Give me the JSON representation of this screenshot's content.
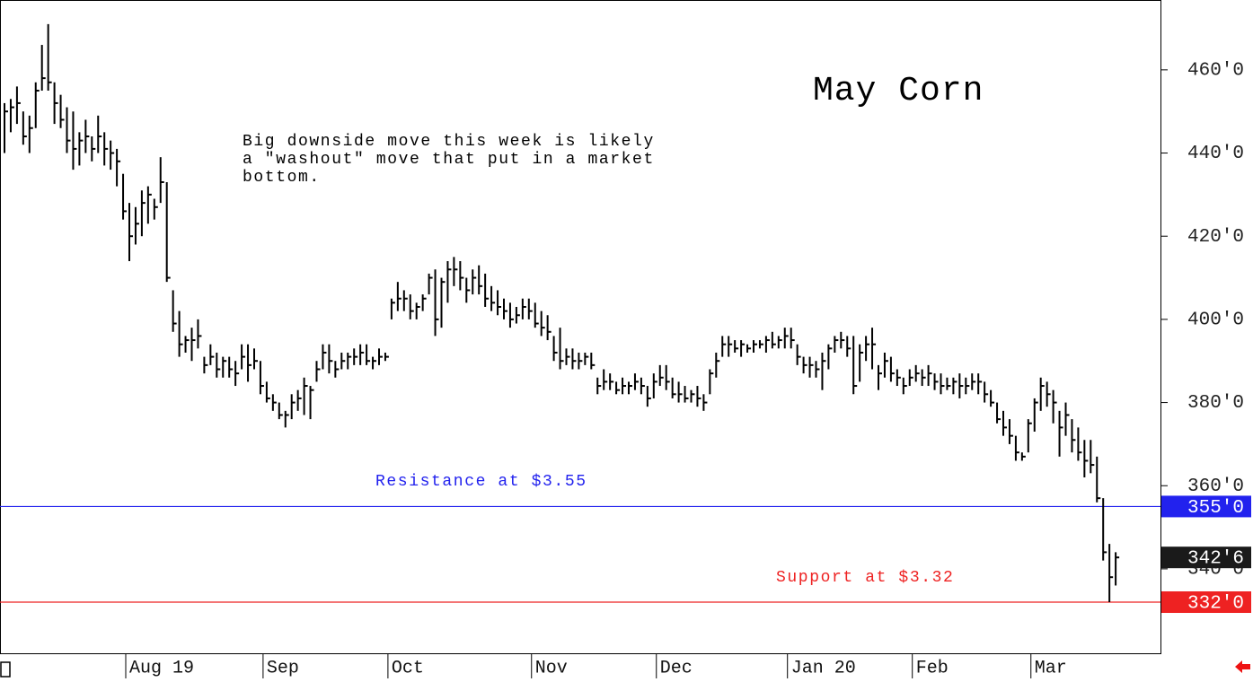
{
  "chart_data": {
    "type": "hlc",
    "title": "May Corn",
    "annotation": [
      "Big downside move this week is likely",
      "a \"washout\" move that put in a market",
      "bottom."
    ],
    "categories": [
      null,
      null,
      null,
      null,
      null,
      null,
      null,
      null,
      null,
      null,
      null,
      null,
      null,
      null,
      null,
      null,
      null,
      null,
      null,
      null,
      "Aug 19",
      null,
      null,
      null,
      null,
      null,
      null,
      null,
      null,
      null,
      null,
      null,
      null,
      null,
      null,
      null,
      null,
      null,
      null,
      null,
      null,
      null,
      "Sep",
      null,
      null,
      null,
      null,
      null,
      null,
      null,
      null,
      null,
      null,
      null,
      null,
      null,
      null,
      null,
      null,
      null,
      null,
      null,
      "Oct",
      null,
      null,
      null,
      null,
      null,
      null,
      null,
      null,
      null,
      null,
      null,
      null,
      null,
      null,
      null,
      null,
      null,
      null,
      null,
      null,
      null,
      null,
      "Nov",
      null,
      null,
      null,
      null,
      null,
      null,
      null,
      null,
      null,
      null,
      null,
      null,
      null,
      null,
      null,
      null,
      null,
      null,
      null,
      "Dec",
      null,
      null,
      null,
      null,
      null,
      null,
      null,
      null,
      null,
      null,
      null,
      null,
      null,
      null,
      null,
      null,
      null,
      null,
      null,
      null,
      "Jan 20",
      null,
      null,
      null,
      null,
      null,
      null,
      null,
      null,
      null,
      null,
      null,
      null,
      null,
      null,
      null,
      null,
      null,
      null,
      null,
      "Feb",
      null,
      null,
      null,
      null,
      null,
      null,
      null,
      null,
      null,
      null,
      null,
      null,
      null,
      null,
      null,
      null,
      null,
      null,
      "Mar",
      null,
      null,
      null,
      null,
      null,
      null,
      null,
      null,
      null,
      null,
      null,
      null,
      null
    ],
    "high": [
      452,
      453,
      456,
      450,
      449,
      457,
      466,
      471,
      457,
      454,
      451,
      450,
      445,
      448,
      444,
      449,
      445,
      443,
      441,
      435,
      428,
      427,
      431,
      432,
      429,
      439,
      433,
      407,
      402,
      396,
      398,
      400,
      391,
      394,
      392,
      391,
      391,
      390,
      394,
      394,
      393,
      390,
      385,
      382,
      380,
      378,
      382,
      383,
      386,
      384,
      390,
      394,
      394,
      390,
      392,
      392,
      393,
      394,
      394,
      391,
      393,
      392,
      405,
      409,
      407,
      406,
      404,
      406,
      411,
      412,
      410,
      414,
      415,
      414,
      410,
      412,
      413,
      411,
      408,
      407,
      405,
      404,
      403,
      405,
      405,
      404,
      402,
      401,
      396,
      398,
      393,
      393,
      392,
      392,
      392,
      386,
      388,
      387,
      385,
      386,
      385,
      387,
      386,
      384,
      387,
      389,
      389,
      386,
      385,
      384,
      383,
      384,
      382,
      388,
      392,
      396,
      396,
      395,
      395,
      394,
      395,
      395,
      396,
      397,
      396,
      398,
      398,
      394,
      391,
      391,
      390,
      392,
      394,
      396,
      397,
      396,
      396,
      394,
      396,
      398,
      389,
      392,
      391,
      388,
      386,
      388,
      389,
      388,
      389,
      387,
      387,
      386,
      386,
      387,
      386,
      387,
      387,
      385,
      383,
      380,
      378,
      376,
      372,
      368,
      376,
      381,
      386,
      385,
      383,
      378,
      380,
      376,
      374,
      371,
      371,
      367,
      357,
      346,
      344
    ],
    "low": [
      440,
      445,
      447,
      442,
      440,
      446,
      455,
      455,
      447,
      446,
      440,
      436,
      437,
      440,
      438,
      440,
      437,
      436,
      432,
      424,
      414,
      418,
      420,
      423,
      424,
      428,
      409,
      397,
      391,
      392,
      390,
      393,
      387,
      389,
      386,
      386,
      386,
      384,
      388,
      385,
      388,
      382,
      380,
      378,
      376,
      374,
      376,
      378,
      377,
      376,
      385,
      388,
      387,
      386,
      388,
      388,
      389,
      389,
      389,
      388,
      389,
      390,
      400,
      402,
      402,
      400,
      400,
      402,
      406,
      396,
      398,
      404,
      408,
      407,
      404,
      406,
      406,
      403,
      402,
      401,
      400,
      398,
      399,
      400,
      400,
      398,
      396,
      395,
      390,
      388,
      389,
      388,
      388,
      389,
      388,
      382,
      383,
      383,
      382,
      382,
      382,
      383,
      382,
      379,
      381,
      384,
      383,
      381,
      380,
      380,
      380,
      379,
      378,
      382,
      386,
      391,
      391,
      392,
      391,
      392,
      392,
      393,
      392,
      393,
      393,
      393,
      393,
      389,
      387,
      386,
      386,
      383,
      388,
      392,
      393,
      391,
      382,
      385,
      390,
      388,
      383,
      386,
      385,
      384,
      382,
      384,
      385,
      384,
      384,
      383,
      382,
      383,
      382,
      381,
      382,
      383,
      382,
      380,
      379,
      375,
      372,
      370,
      366,
      366,
      368,
      373,
      378,
      379,
      375,
      367,
      372,
      368,
      366,
      362,
      363,
      356,
      342,
      332,
      336
    ],
    "close": [
      450,
      451,
      452,
      444,
      446,
      455,
      458,
      457,
      452,
      448,
      443,
      441,
      443,
      444,
      441,
      444,
      441,
      440,
      438,
      426,
      420,
      423,
      428,
      430,
      427,
      433,
      410,
      399,
      394,
      395,
      395,
      396,
      389,
      391,
      388,
      390,
      388,
      387,
      391,
      389,
      390,
      384,
      381,
      380,
      377,
      377,
      380,
      381,
      384,
      383,
      388,
      392,
      390,
      388,
      390,
      391,
      391,
      392,
      390,
      390,
      391,
      391,
      404,
      405,
      405,
      402,
      403,
      405,
      410,
      400,
      409,
      412,
      412,
      410,
      407,
      410,
      408,
      405,
      404,
      403,
      402,
      400,
      401,
      403,
      402,
      399,
      398,
      397,
      392,
      390,
      391,
      390,
      390,
      391,
      389,
      384,
      385,
      385,
      383,
      384,
      384,
      385,
      384,
      381,
      385,
      386,
      385,
      382,
      382,
      381,
      382,
      381,
      380,
      387,
      390,
      394,
      394,
      393,
      394,
      393,
      394,
      394,
      395,
      394,
      395,
      396,
      395,
      391,
      389,
      389,
      388,
      390,
      393,
      395,
      395,
      393,
      384,
      392,
      394,
      394,
      387,
      390,
      387,
      386,
      384,
      386,
      387,
      386,
      387,
      385,
      384,
      384,
      385,
      384,
      384,
      385,
      385,
      382,
      380,
      376,
      374,
      372,
      368,
      367,
      375,
      380,
      384,
      382,
      380,
      374,
      377,
      371,
      368,
      366,
      365,
      357,
      344,
      338,
      342.75
    ],
    "color": "#000000",
    "ylim": [
      319.7,
      476.8
    ],
    "yticks": [
      {
        "value": 340,
        "label": "340'0"
      },
      {
        "value": 360,
        "label": "360'0"
      },
      {
        "value": 380,
        "label": "380'0"
      },
      {
        "value": 400,
        "label": "400'0"
      },
      {
        "value": 420,
        "label": "420'0"
      },
      {
        "value": 440,
        "label": "440'0"
      },
      {
        "value": 460,
        "label": "460'0"
      }
    ],
    "last": {
      "value": 342.75,
      "label": "342'6",
      "color": "#1a1a1a"
    },
    "levels": [
      {
        "text": "Resistance at $3.55",
        "value": 355,
        "label": "355'0",
        "color": "#2222ee"
      },
      {
        "text": "Support at $3.32",
        "value": 332,
        "label": "332'0",
        "color": "#ee2222"
      }
    ]
  }
}
